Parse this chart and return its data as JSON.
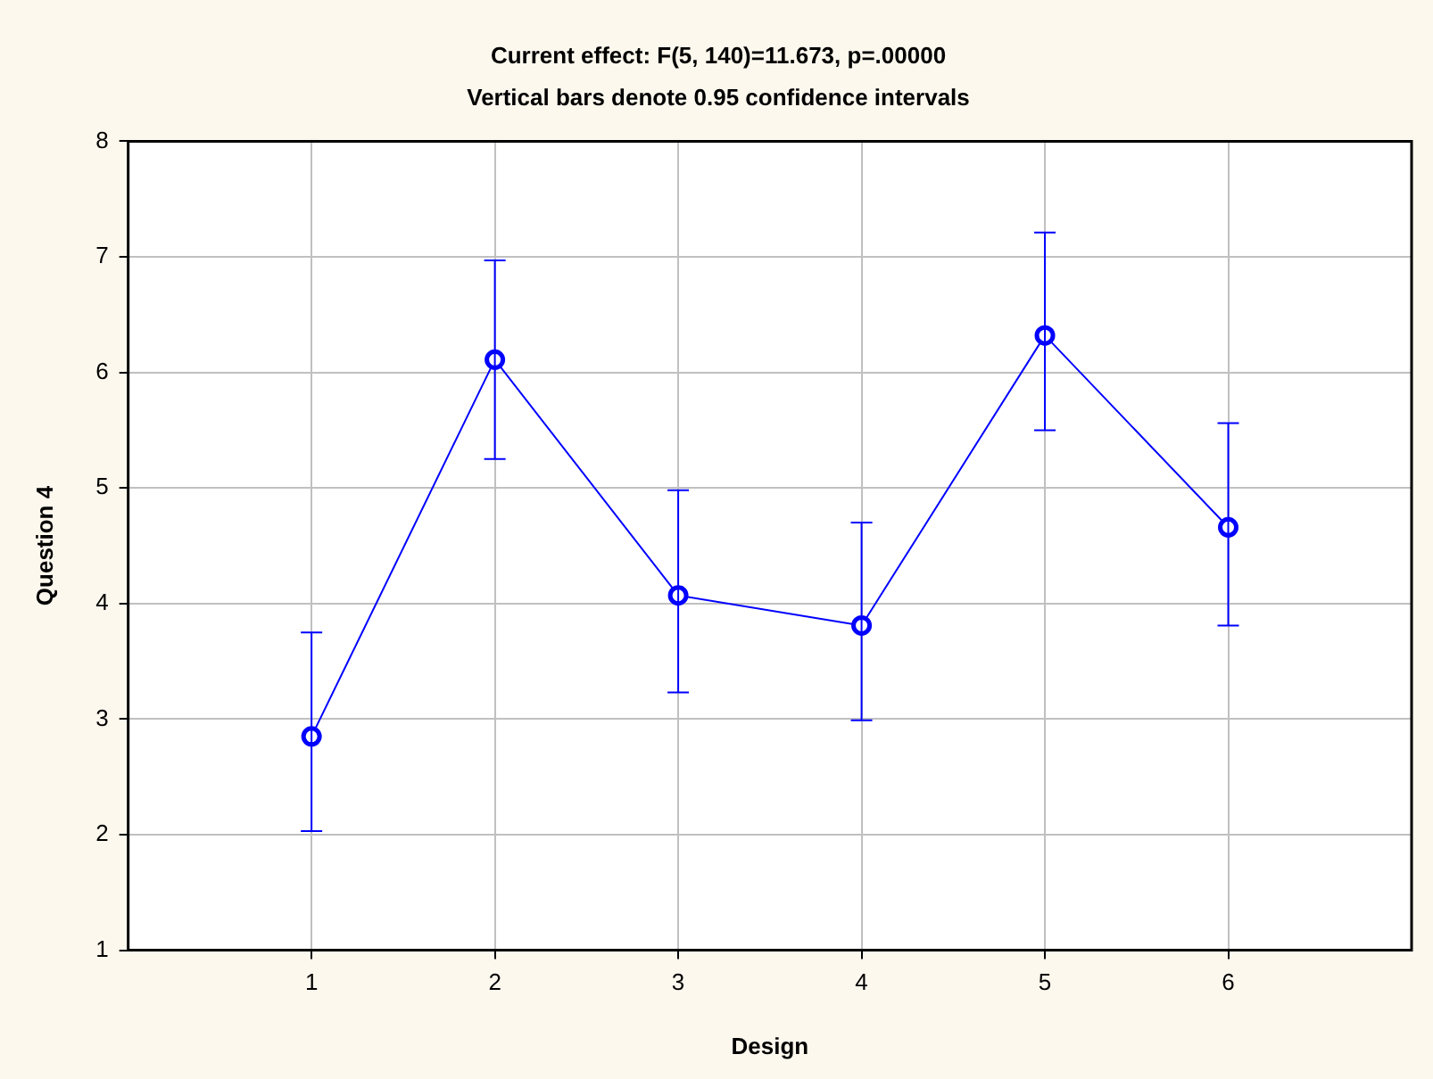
{
  "chart_data": {
    "type": "line",
    "title": "Current effect: F(5, 140)=11.673, p=.00000",
    "subtitle": "Vertical bars denote 0.95 confidence intervals",
    "xlabel": "Design",
    "ylabel": "Question 4",
    "x": [
      1,
      2,
      3,
      4,
      5,
      6
    ],
    "series": [
      {
        "color": "#0000ff",
        "values": [
          2.85,
          6.11,
          4.07,
          3.81,
          6.32,
          4.66
        ],
        "errors": [
          [
            2.03,
            3.75
          ],
          [
            5.25,
            6.97
          ],
          [
            3.23,
            4.98
          ],
          [
            2.99,
            4.7
          ],
          [
            5.5,
            7.21
          ],
          [
            3.81,
            5.56
          ]
        ]
      }
    ],
    "xlim": [
      0,
      7
    ],
    "xticks": [
      1,
      2,
      3,
      4,
      5,
      6
    ],
    "ylim": [
      1,
      8
    ],
    "yticks": [
      1,
      2,
      3,
      4,
      5,
      6,
      7,
      8
    ],
    "grid": true,
    "legend": false,
    "marker": "circle",
    "line_style": "solid"
  }
}
